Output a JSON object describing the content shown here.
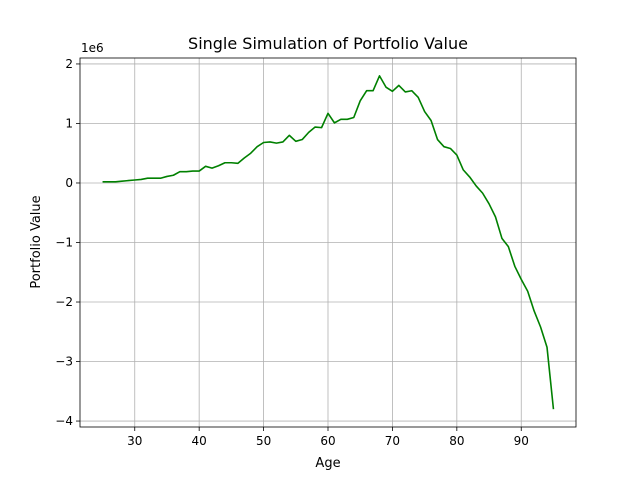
{
  "chart_data": {
    "type": "line",
    "title": "Single Simulation of Portfolio Value",
    "xlabel": "Age",
    "ylabel": "Portfolio Value",
    "offset_label": "1e6",
    "xlim": [
      21.5,
      98.5
    ],
    "ylim": [
      -4.1,
      2.1
    ],
    "xticks": [
      30,
      40,
      50,
      60,
      70,
      80,
      90
    ],
    "yticks": [
      -4,
      -3,
      -2,
      -1,
      0,
      1,
      2
    ],
    "ytick_labels": [
      "−4",
      "−3",
      "−2",
      "−1",
      "0",
      "1",
      "2"
    ],
    "grid": true,
    "line_color": "#008000",
    "series": [
      {
        "x": [
          25,
          26,
          27,
          28,
          29,
          30,
          31,
          32,
          33,
          34,
          35,
          36,
          37,
          38,
          39,
          40,
          41,
          42,
          43,
          44,
          45,
          46,
          47,
          48,
          49,
          50,
          51,
          52,
          53,
          54,
          55,
          56,
          57,
          58,
          59,
          60,
          61,
          62,
          63,
          64,
          65,
          66,
          67,
          68,
          69,
          70,
          71,
          72,
          73,
          74,
          75,
          76,
          77,
          78,
          79,
          80,
          81,
          82,
          83,
          84,
          85,
          86,
          87,
          88,
          89,
          90,
          91,
          92,
          93,
          94,
          95
        ],
        "y": [
          0.02,
          0.02,
          0.02,
          0.03,
          0.04,
          0.05,
          0.06,
          0.08,
          0.08,
          0.08,
          0.11,
          0.13,
          0.19,
          0.19,
          0.2,
          0.2,
          0.28,
          0.25,
          0.29,
          0.34,
          0.34,
          0.33,
          0.42,
          0.5,
          0.61,
          0.68,
          0.69,
          0.67,
          0.69,
          0.8,
          0.7,
          0.73,
          0.85,
          0.94,
          0.93,
          1.17,
          1.01,
          1.07,
          1.07,
          1.1,
          1.38,
          1.55,
          1.55,
          1.8,
          1.61,
          1.54,
          1.64,
          1.53,
          1.55,
          1.44,
          1.2,
          1.05,
          0.73,
          0.61,
          0.58,
          0.47,
          0.22,
          0.1,
          -0.05,
          -0.17,
          -0.35,
          -0.57,
          -0.93,
          -1.07,
          -1.4,
          -1.62,
          -1.82,
          -2.15,
          -2.42,
          -2.76,
          -3.8
        ]
      }
    ]
  }
}
